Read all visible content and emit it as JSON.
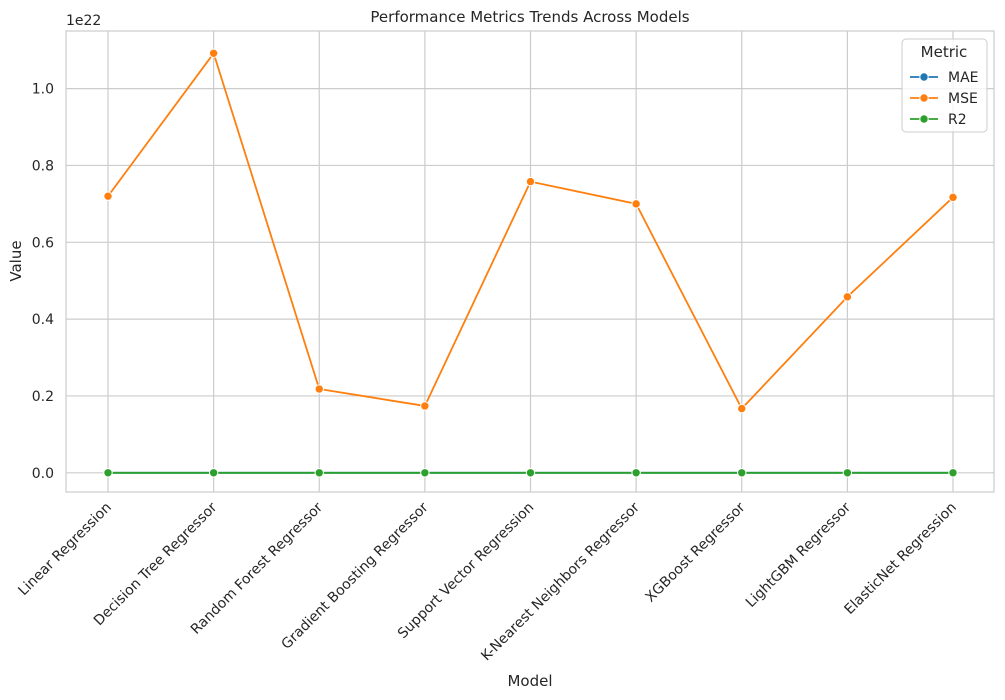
{
  "chart_data": {
    "type": "line",
    "title": "Performance Metrics Trends Across Models",
    "xlabel": "Model",
    "ylabel": "Value",
    "y_offset_label": "1e22",
    "y_scale_exponent": 22,
    "ylim": [
      -0.05,
      1.15
    ],
    "yticks": [
      0.0,
      0.2,
      0.4,
      0.6,
      0.8,
      1.0
    ],
    "ytick_labels": [
      "0.0",
      "0.2",
      "0.4",
      "0.6",
      "0.8",
      "1.0"
    ],
    "grid": true,
    "legend_title": "Metric",
    "legend_position": "top-right",
    "categories": [
      "Linear Regression",
      "Decision Tree Regressor",
      "Random Forest Regressor",
      "Gradient Boosting Regressor",
      "Support Vector Regression",
      "K-Nearest Neighbors Regressor",
      "XGBoost Regressor",
      "LightGBM Regressor",
      "ElasticNet Regression"
    ],
    "series": [
      {
        "name": "MAE",
        "color": "#1f77b4",
        "values": [
          0,
          0,
          0,
          0,
          0,
          0,
          0,
          0,
          0
        ]
      },
      {
        "name": "MSE",
        "color": "#ff7f0e",
        "values": [
          0.72,
          1.092,
          0.218,
          0.174,
          0.758,
          0.7,
          0.167,
          0.458,
          0.717
        ]
      },
      {
        "name": "R2",
        "color": "#2ca02c",
        "values": [
          0,
          0,
          0,
          0,
          0,
          0,
          0,
          0,
          0
        ]
      }
    ]
  }
}
